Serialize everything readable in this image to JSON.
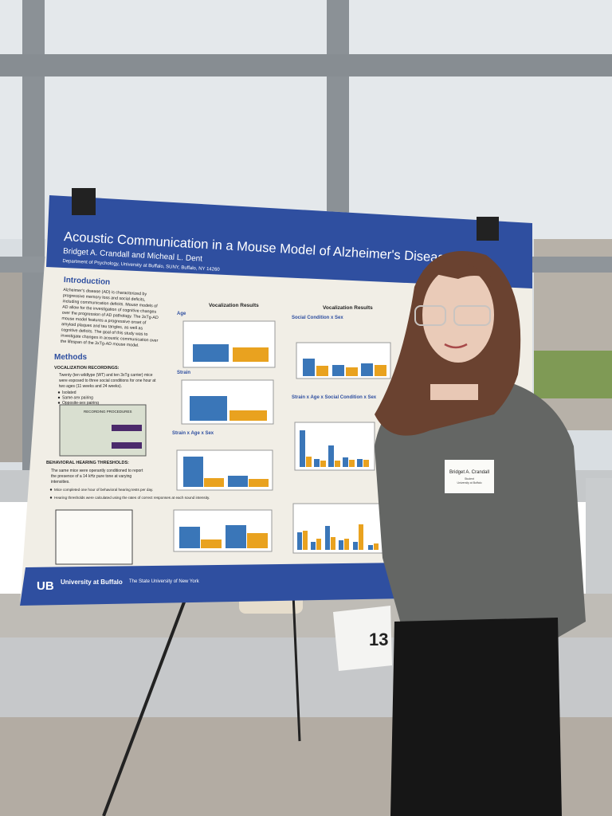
{
  "poster": {
    "title": "Acoustic Communication in a Mouse Model of Alzheimer's Disease",
    "authors": "Bridget A. Crandall and Micheal L. Dent",
    "affiliation": "Department of Psychology, University at Buffalo, SUNY, Buffalo, NY 14260",
    "introduction": {
      "heading": "Introduction",
      "lines": [
        "Alzheimer's disease (AD) is characterized by",
        "progressive memory loss and social deficits,",
        "including communication deficits. Mouse models of",
        "AD allow for the investigation of cognitive changes",
        "over the progression of AD pathology. The 3xTg-AD",
        "mouse model features a progressive onset of",
        "amyloid plaques and tau tangles, as well as",
        "cognitive deficits. The goal of this study was to",
        "investigate changes in acoustic communication over",
        "the lifespan of the 3xTg-AD mouse model."
      ]
    },
    "methods": {
      "heading": "Methods",
      "vocalization_heading": "VOCALIZATION RECORDINGS:",
      "vocalization_lines": [
        "Twenty (ten wildtype (WT) and ten 3xTg carrier) mice",
        "were exposed to three social conditions for one hour at",
        "two ages (11 weeks and 24 weeks)."
      ],
      "bullets": [
        "Isolated",
        "Same-sex pairing",
        "Opposite-sex pairing"
      ],
      "procedure_label": "RECORDING PROCEDURES",
      "hearing_heading": "BEHAVIORAL HEARING THRESHOLDS:",
      "hearing_lines": [
        "The same mice were operantly conditioned to report",
        "the presence of a 14 kHz pure tone at varying",
        "intensities."
      ],
      "hearing_bullets": [
        "Mice completed one hour of behavioral hearing tests per day.",
        "Hearing thresholds were calculated using the rates of correct responses at each sound intensity."
      ]
    },
    "results_left": {
      "heading": "Vocalization Results",
      "panels": [
        "Age",
        "Strain",
        "Strain x Age x Sex"
      ]
    },
    "results_right": {
      "heading": "Vocalization Results",
      "panels": [
        "Social Condition x Sex",
        "Strain x Age x Social Condition x Sex"
      ]
    },
    "footer": {
      "university": "University at Buffalo",
      "tagline": "The State University of New York"
    }
  },
  "name_tag": {
    "name": "Bridget A. Crandall",
    "role": "Student",
    "school": "University at Buffalo"
  },
  "table_number": "13"
}
